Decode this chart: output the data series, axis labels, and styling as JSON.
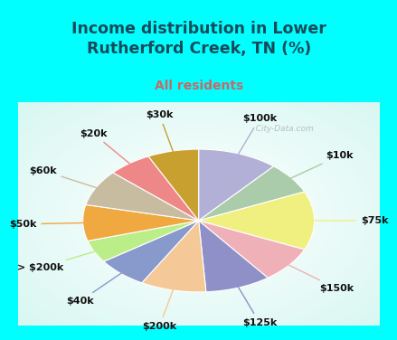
{
  "title": "Income distribution in Lower\nRutherford Creek, TN (%)",
  "subtitle": "All residents",
  "bg_cyan": "#00FFFF",
  "title_color": "#1a4a5a",
  "subtitle_color": "#cc6666",
  "watermark": "  City-Data.com",
  "labels": [
    "$100k",
    "$10k",
    "$75k",
    "$150k",
    "$125k",
    "$200k",
    "$40k",
    "> $200k",
    "$50k",
    "$60k",
    "$20k",
    "$30k"
  ],
  "values": [
    11,
    7,
    13,
    8,
    9,
    9,
    7,
    5,
    8,
    8,
    6,
    7
  ],
  "colors": [
    "#b3b0d8",
    "#aaccaa",
    "#f0f080",
    "#f0b0b8",
    "#9090c8",
    "#f5c898",
    "#8899cc",
    "#bbee88",
    "#f0a840",
    "#c8bca0",
    "#ee8888",
    "#c8a030"
  ],
  "label_fontsize": 8,
  "label_color": "#111111"
}
